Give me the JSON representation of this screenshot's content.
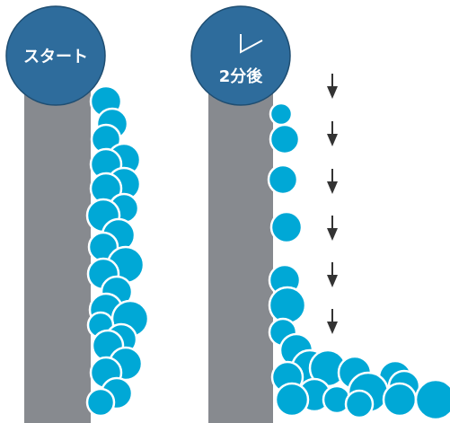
{
  "labels": {
    "start": "スタート",
    "after": "2分後"
  }
}
